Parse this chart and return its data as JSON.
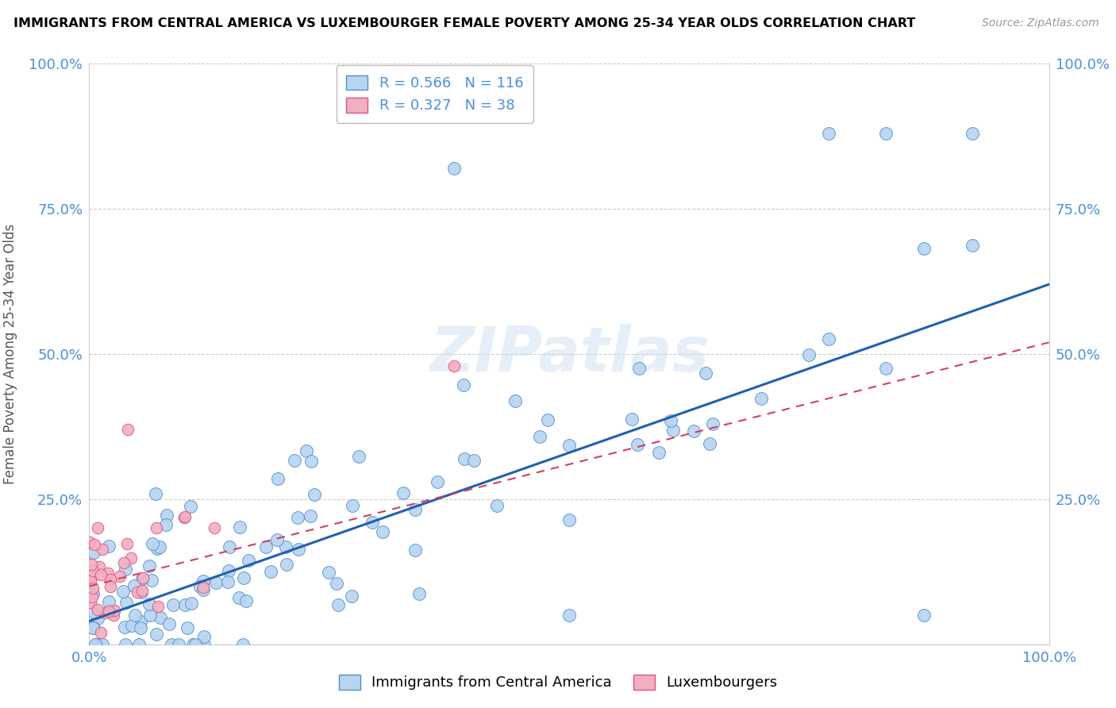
{
  "title": "IMMIGRANTS FROM CENTRAL AMERICA VS LUXEMBOURGER FEMALE POVERTY AMONG 25-34 YEAR OLDS CORRELATION CHART",
  "source": "Source: ZipAtlas.com",
  "ylabel": "Female Poverty Among 25-34 Year Olds",
  "blue_R": 0.566,
  "blue_N": 116,
  "pink_R": 0.327,
  "pink_N": 38,
  "blue_color": "#b8d4f0",
  "pink_color": "#f0b0c0",
  "blue_edge_color": "#5090d0",
  "pink_edge_color": "#e05080",
  "blue_line_color": "#2060b0",
  "pink_line_color": "#d04060",
  "watermark": "ZIPatlas",
  "legend_entries": [
    "Immigrants from Central America",
    "Luxembourgers"
  ],
  "blue_line_intercept": 0.04,
  "blue_line_slope": 0.58,
  "pink_line_intercept": 0.1,
  "pink_line_slope": 0.42
}
